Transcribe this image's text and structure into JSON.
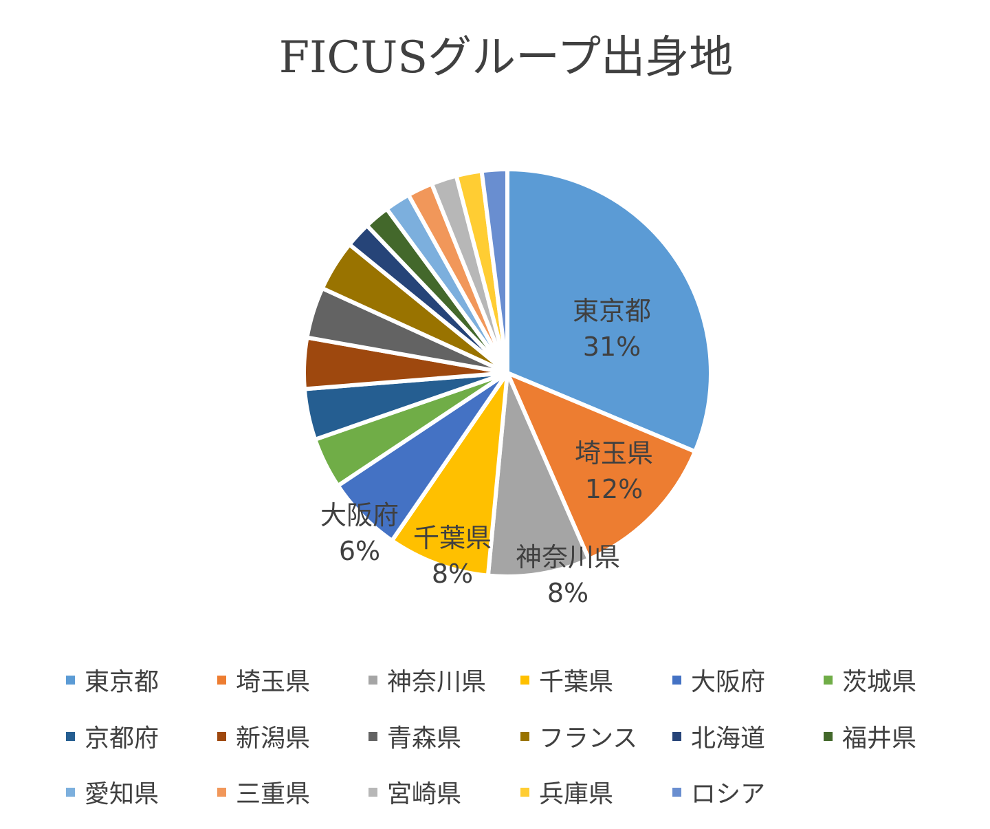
{
  "chart_data": {
    "type": "pie",
    "title": "FICUSグループ出身地",
    "categories": [
      "東京都",
      "埼玉県",
      "神奈川県",
      "千葉県",
      "大阪府",
      "茨城県",
      "京都府",
      "新潟県",
      "青森県",
      "フランス",
      "北海道",
      "福井県",
      "愛知県",
      "三重県",
      "宮崎県",
      "兵庫県",
      "ロシア"
    ],
    "values": [
      31,
      12,
      8,
      8,
      6,
      4,
      4,
      4,
      4,
      4,
      2,
      2,
      2,
      2,
      2,
      2,
      2
    ],
    "colors": [
      "#5B9BD5",
      "#ED7D31",
      "#A5A5A5",
      "#FFC000",
      "#4472C4",
      "#70AD47",
      "#255E91",
      "#9E480E",
      "#636363",
      "#997300",
      "#264478",
      "#43682B",
      "#7CAFDD",
      "#F1975A",
      "#B7B7B7",
      "#FFCD33",
      "#698ED0"
    ],
    "data_labels": [
      {
        "category": "東京都",
        "text": "31%"
      },
      {
        "category": "埼玉県",
        "text": "12%"
      },
      {
        "category": "神奈川県",
        "text": "8%"
      },
      {
        "category": "千葉県",
        "text": "8%"
      },
      {
        "category": "大阪府",
        "text": "6%"
      }
    ],
    "legend_position": "bottom"
  }
}
